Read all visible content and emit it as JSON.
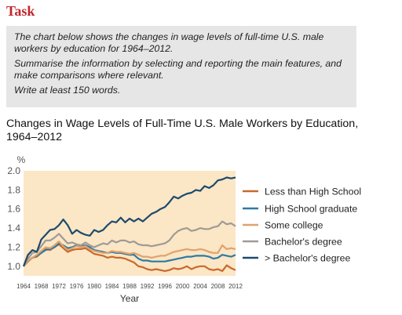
{
  "task": {
    "heading": "Task",
    "paragraphs": [
      "The chart below shows the changes in wage levels of full-time U.S. male workers by education for 1964–2012.",
      "Summarise the information by selecting and reporting the main features, and make comparisons where relevant.",
      "Write at least 150 words."
    ]
  },
  "chart_data": {
    "type": "line",
    "title": "Changes in Wage Levels of Full-Time U.S. Male Workers by Education, 1964–2012",
    "xlabel": "Year",
    "ylabel": "%",
    "xlim": [
      1964,
      2012
    ],
    "ylim": [
      0.9,
      2.0
    ],
    "yticks": [
      "1.0",
      "1.2",
      "1.4",
      "1.6",
      "1.8",
      "2.0"
    ],
    "xticks": [
      "1964",
      "1968",
      "1972",
      "1976",
      "1980",
      "1984",
      "1988",
      "1992",
      "1996",
      "2000",
      "2004",
      "2008",
      "2012"
    ],
    "background_color": "#fbe6c5",
    "grid": false,
    "legend_position": "right",
    "x": [
      1964,
      1965,
      1966,
      1967,
      1968,
      1969,
      1970,
      1971,
      1972,
      1973,
      1974,
      1975,
      1976,
      1977,
      1978,
      1979,
      1980,
      1981,
      1982,
      1983,
      1984,
      1985,
      1986,
      1987,
      1988,
      1989,
      1990,
      1991,
      1992,
      1993,
      1994,
      1995,
      1996,
      1997,
      1998,
      1999,
      2000,
      2001,
      2002,
      2003,
      2004,
      2005,
      2006,
      2007,
      2008,
      2009,
      2010,
      2011,
      2012
    ],
    "series": [
      {
        "name": "Less than High School",
        "color": "#c8692d",
        "values": [
          1.0,
          1.05,
          1.09,
          1.1,
          1.14,
          1.18,
          1.17,
          1.2,
          1.23,
          1.19,
          1.15,
          1.17,
          1.18,
          1.18,
          1.19,
          1.16,
          1.13,
          1.12,
          1.11,
          1.09,
          1.1,
          1.09,
          1.09,
          1.08,
          1.06,
          1.04,
          1.0,
          0.99,
          0.97,
          0.96,
          0.97,
          0.96,
          0.95,
          0.96,
          0.98,
          0.97,
          0.98,
          1.0,
          0.97,
          0.99,
          1.0,
          1.0,
          0.97,
          0.96,
          0.97,
          0.95,
          1.01,
          0.98,
          0.96
        ]
      },
      {
        "name": "High School graduate",
        "color": "#2e7aa3",
        "values": [
          1.0,
          1.06,
          1.09,
          1.11,
          1.14,
          1.17,
          1.18,
          1.2,
          1.24,
          1.22,
          1.19,
          1.2,
          1.22,
          1.21,
          1.22,
          1.2,
          1.17,
          1.16,
          1.15,
          1.14,
          1.15,
          1.14,
          1.14,
          1.13,
          1.12,
          1.12,
          1.08,
          1.06,
          1.06,
          1.05,
          1.05,
          1.05,
          1.05,
          1.06,
          1.07,
          1.08,
          1.09,
          1.1,
          1.1,
          1.11,
          1.11,
          1.11,
          1.1,
          1.08,
          1.09,
          1.12,
          1.11,
          1.1,
          1.12
        ]
      },
      {
        "name": "Some college",
        "color": "#e0a36c",
        "values": [
          1.0,
          1.06,
          1.09,
          1.12,
          1.16,
          1.2,
          1.19,
          1.22,
          1.26,
          1.21,
          1.17,
          1.19,
          1.21,
          1.2,
          1.21,
          1.18,
          1.16,
          1.15,
          1.14,
          1.14,
          1.16,
          1.15,
          1.15,
          1.14,
          1.13,
          1.14,
          1.12,
          1.1,
          1.1,
          1.09,
          1.1,
          1.11,
          1.11,
          1.13,
          1.15,
          1.16,
          1.17,
          1.18,
          1.17,
          1.17,
          1.18,
          1.17,
          1.15,
          1.14,
          1.14,
          1.22,
          1.18,
          1.19,
          1.18
        ]
      },
      {
        "name": "Bachelor's degree",
        "color": "#a09a96",
        "values": [
          1.0,
          1.08,
          1.14,
          1.15,
          1.21,
          1.27,
          1.27,
          1.3,
          1.34,
          1.29,
          1.24,
          1.25,
          1.23,
          1.22,
          1.25,
          1.22,
          1.2,
          1.22,
          1.24,
          1.23,
          1.27,
          1.25,
          1.27,
          1.27,
          1.25,
          1.26,
          1.23,
          1.22,
          1.22,
          1.21,
          1.22,
          1.23,
          1.24,
          1.27,
          1.33,
          1.37,
          1.39,
          1.4,
          1.37,
          1.38,
          1.4,
          1.39,
          1.39,
          1.41,
          1.42,
          1.47,
          1.44,
          1.45,
          1.42
        ]
      },
      {
        "name": "> Bachelor's degree",
        "color": "#1d4a6d",
        "values": [
          1.0,
          1.12,
          1.17,
          1.15,
          1.28,
          1.33,
          1.38,
          1.39,
          1.43,
          1.49,
          1.43,
          1.34,
          1.38,
          1.35,
          1.33,
          1.32,
          1.38,
          1.36,
          1.38,
          1.43,
          1.47,
          1.46,
          1.51,
          1.46,
          1.5,
          1.47,
          1.5,
          1.47,
          1.51,
          1.55,
          1.57,
          1.6,
          1.62,
          1.67,
          1.73,
          1.71,
          1.74,
          1.76,
          1.77,
          1.8,
          1.79,
          1.84,
          1.82,
          1.85,
          1.9,
          1.91,
          1.93,
          1.92,
          1.93
        ]
      }
    ]
  }
}
